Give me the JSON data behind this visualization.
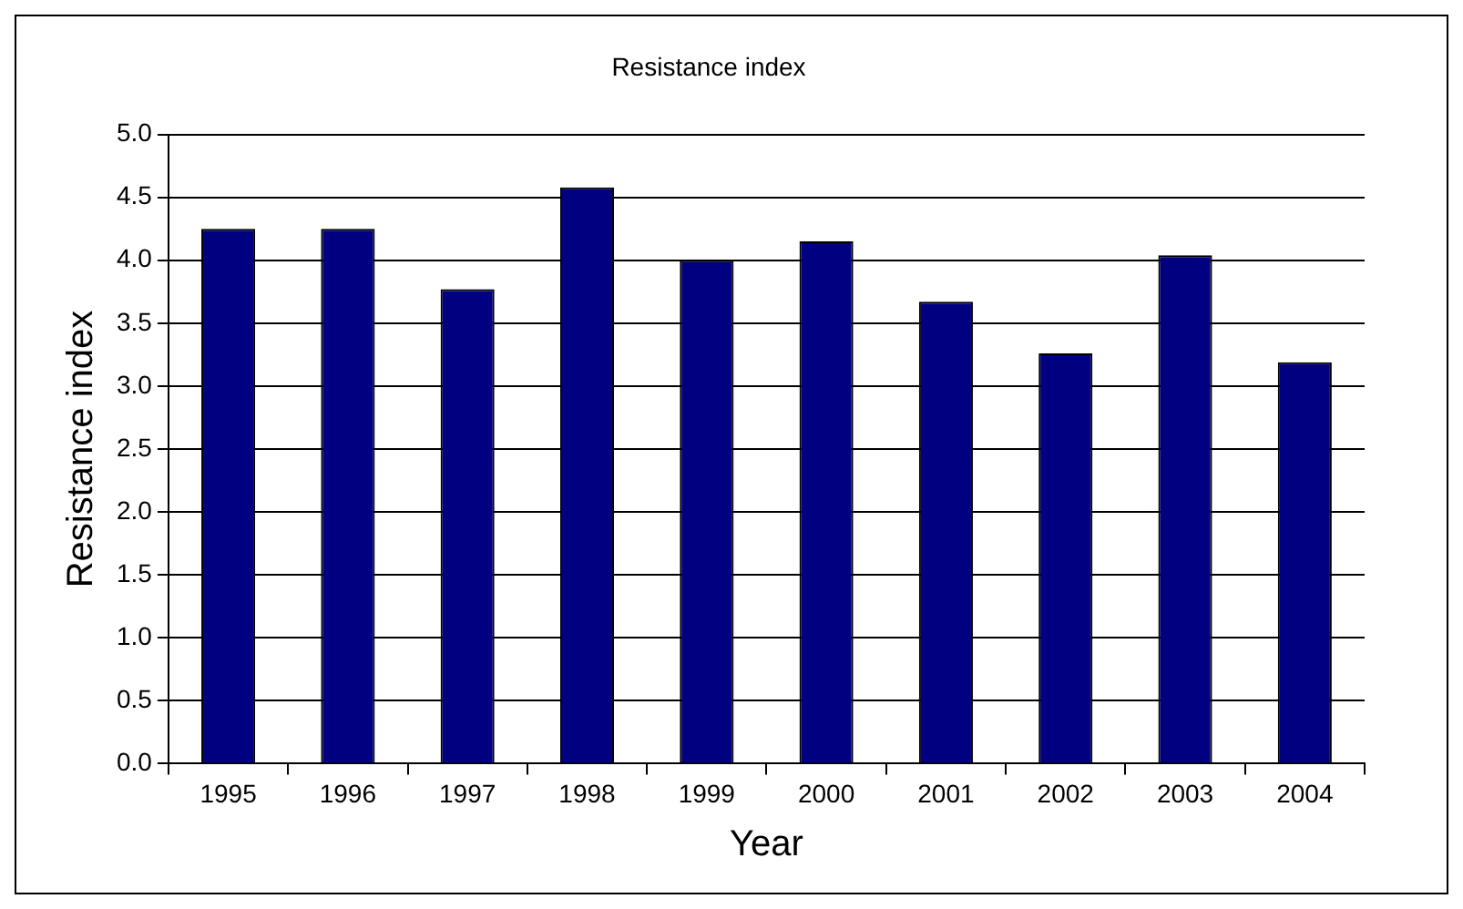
{
  "chart_data": {
    "type": "bar",
    "title": "Resistance index",
    "xlabel": "Year",
    "ylabel": "Resistance index",
    "categories": [
      "1995",
      "1996",
      "1997",
      "1998",
      "1999",
      "2000",
      "2001",
      "2002",
      "2003",
      "2004"
    ],
    "values": [
      4.25,
      4.25,
      3.77,
      4.58,
      4.0,
      4.15,
      3.67,
      3.26,
      4.04,
      3.19
    ],
    "color": "#000080",
    "ylim": [
      0,
      5
    ],
    "yticks": [
      {
        "value": 0,
        "label": "0.0"
      },
      {
        "value": 0.5,
        "label": "0.5"
      },
      {
        "value": 1,
        "label": "1.0"
      },
      {
        "value": 1.5,
        "label": "1.5"
      },
      {
        "value": 2,
        "label": "2.0"
      },
      {
        "value": 2.5,
        "label": "2.5"
      },
      {
        "value": 3,
        "label": "3.0"
      },
      {
        "value": 3.5,
        "label": "3.5"
      },
      {
        "value": 4,
        "label": "4.0"
      },
      {
        "value": 4.5,
        "label": "4.5"
      },
      {
        "value": 5,
        "label": "5.0"
      }
    ],
    "grid": "y"
  }
}
